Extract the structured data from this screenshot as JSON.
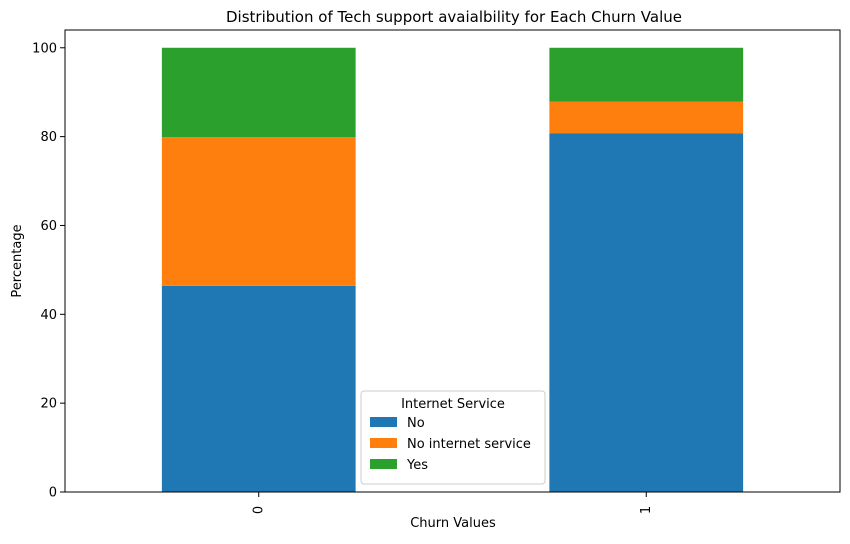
{
  "chart_data": {
    "type": "bar",
    "stacked": true,
    "title": "Distribution of Tech support avaialbility for Each Churn Value",
    "xlabel": "Churn Values",
    "ylabel": "Percentage",
    "categories": [
      "0",
      "1"
    ],
    "ylim": [
      0,
      104
    ],
    "yticks": [
      0,
      20,
      40,
      60,
      80,
      100
    ],
    "grid": false,
    "legend": {
      "title": "Internet Service",
      "placement": "bottom-center"
    },
    "series": [
      {
        "name": "No",
        "color": "#1f77b4",
        "values": [
          46.4,
          80.7
        ]
      },
      {
        "name": "No internet service",
        "color": "#ff7f0e",
        "values": [
          33.5,
          7.2
        ]
      },
      {
        "name": "Yes",
        "color": "#2ca02c",
        "values": [
          20.1,
          12.1
        ]
      }
    ]
  }
}
